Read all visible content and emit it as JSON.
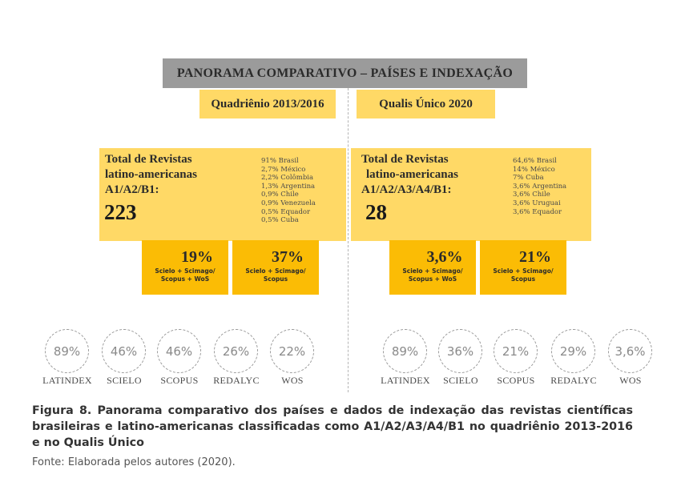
{
  "title": "PANORAMA COMPARATIVO – PAÍSES E INDEXAÇÃO",
  "left": {
    "period": "Quadriênio 2013/2016",
    "total_label_lines": [
      "Total de Revistas",
      "latino-americanas",
      "A1/A2/B1:"
    ],
    "total_value": "223",
    "countries": [
      "91% Brasil",
      "2,7% México",
      "2,2% Colômbia",
      "1,3% Argentina",
      "0,9% Chile",
      "0,9% Venezuela",
      "0,5% Equador",
      "0,5% Cuba"
    ],
    "pct_boxes": [
      {
        "value": "19%",
        "desc_lines": [
          "Scielo + Scimago/",
          "Scopus + WoS"
        ]
      },
      {
        "value": "37%",
        "desc_lines": [
          "Scielo + Scimago/",
          "Scopus"
        ]
      }
    ],
    "indexes": [
      {
        "value": "89%",
        "label": "LATINDEX"
      },
      {
        "value": "46%",
        "label": "SCIELO"
      },
      {
        "value": "46%",
        "label": "SCOPUS"
      },
      {
        "value": "26%",
        "label": "REDALYC"
      },
      {
        "value": "22%",
        "label": "WOS"
      }
    ]
  },
  "right": {
    "period": "Qualis Único 2020",
    "total_label_lines": [
      "Total de Revistas",
      "latino-americanas",
      "A1/A2/A3/A4/B1:"
    ],
    "total_value": "28",
    "countries": [
      "64,6% Brasil",
      "14% México",
      "7% Cuba",
      "3,6% Argentina",
      "3,6% Chile",
      "3,6% Uruguai",
      "3,6% Equador"
    ],
    "pct_boxes": [
      {
        "value": "3,6%",
        "desc_lines": [
          "Scielo + Scimago/",
          "Scopus + WoS"
        ]
      },
      {
        "value": "21%",
        "desc_lines": [
          "Scielo + Scimago/",
          "Scopus"
        ]
      }
    ],
    "indexes": [
      {
        "value": "89%",
        "label": "LATINDEX"
      },
      {
        "value": "36%",
        "label": "SCIELO"
      },
      {
        "value": "21%",
        "label": "SCOPUS"
      },
      {
        "value": "29%",
        "label": "REDALYC"
      },
      {
        "value": "3,6%",
        "label": "WOS"
      }
    ]
  },
  "caption": "Figura 8. Panorama comparativo dos países e dados de indexação das revistas científicas brasileiras e latino-americanas classificadas como A1/A2/A3/A4/B1 no quadriênio 2013-2016 e no Qualis Único",
  "source": "Fonte: Elaborada pelos autores (2020)."
}
